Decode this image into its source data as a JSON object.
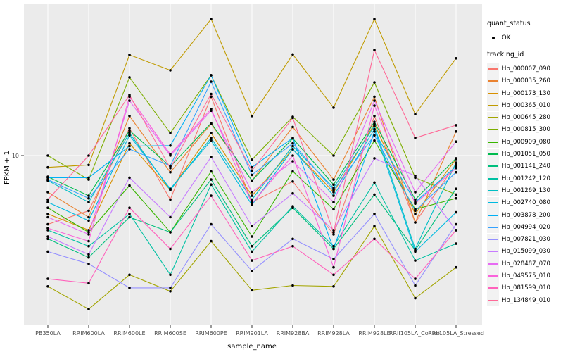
{
  "figure": {
    "xlabel": "sample_name",
    "ylabel": "FPKM + 1"
  },
  "legend": {
    "quant_status_title": "quant_status",
    "quant_status_items": [
      {
        "label": "OK",
        "marker": "point"
      }
    ],
    "tracking_id_title": "tracking_id"
  },
  "colors": {
    "panel_bg": "#EBEBEB",
    "grid": "#FFFFFF",
    "tick_text": "#4D4D4D",
    "point": "#000000",
    "legend_key_bg": "#F2F2F2"
  },
  "chart_data": {
    "type": "line",
    "title": "",
    "xlabel": "sample_name",
    "ylabel": "FPKM + 1",
    "y_scale": "log10",
    "y_ticks": [
      10
    ],
    "grid": true,
    "legend_position": "right",
    "point_marker": "filled-circle",
    "categories": [
      "PB350LA",
      "RRIM600LA",
      "RRIM600LE",
      "RRIM600SE",
      "RRIM600PE",
      "RRIM901LA",
      "RRIM928BA",
      "RRIM928LA",
      "RRIM928LE",
      "RRII105LA_Control",
      "RRII105LA_Stressed"
    ],
    "series": [
      {
        "name": "Hb_000007_090",
        "color": "#F8766D",
        "values": [
          3.6,
          4.4,
          15,
          5.2,
          24,
          5,
          6.8,
          3.1,
          18,
          3.7,
          8.8
        ]
      },
      {
        "name": "Hb_000035_260",
        "color": "#EA8331",
        "values": [
          5.8,
          4,
          18,
          7.8,
          16,
          6.9,
          15.3,
          7,
          24,
          3.7,
          14.3
        ]
      },
      {
        "name": "Hb_000173_130",
        "color": "#D89000",
        "values": [
          4.2,
          3.3,
          12,
          6,
          14,
          5.5,
          11,
          5.8,
          16,
          4.2,
          9.5
        ]
      },
      {
        "name": "Hb_000365_010",
        "color": "#C09B00",
        "values": [
          8.4,
          8.7,
          44.7,
          35.5,
          76,
          18,
          45,
          20.4,
          76,
          18.5,
          42.5
        ]
      },
      {
        "name": "Hb_000645_280",
        "color": "#A3A500",
        "values": [
          1.43,
          1.02,
          1.7,
          1.33,
          2.8,
          1.35,
          1.45,
          1.43,
          3.5,
          1.2,
          1.9
        ]
      },
      {
        "name": "Hb_000815_300",
        "color": "#7CAE00",
        "values": [
          10,
          7,
          32,
          14,
          33,
          9.4,
          17.8,
          10,
          29.7,
          7.2,
          5.6
        ]
      },
      {
        "name": "Hb_000909_080",
        "color": "#39B600",
        "values": [
          4.6,
          3.2,
          6.4,
          3.2,
          7.9,
          3,
          7.9,
          4.5,
          12.5,
          4.5,
          5.3
        ]
      },
      {
        "name": "Hb_001051_050",
        "color": "#00BB4E",
        "values": [
          7.3,
          5.5,
          14.5,
          8.5,
          16.2,
          6.9,
          12.9,
          6.5,
          16.5,
          5.2,
          9.6
        ]
      },
      {
        "name": "Hb_001141_240",
        "color": "#00BF7D",
        "values": [
          2.9,
          2.2,
          4,
          3.2,
          7,
          2.6,
          4.6,
          2.5,
          5.6,
          2.45,
          6.1
        ]
      },
      {
        "name": "Hb_001242_120",
        "color": "#00C1A3",
        "values": [
          3.3,
          2.6,
          4.2,
          1.7,
          6.5,
          2.4,
          4.7,
          2.6,
          6.7,
          2.1,
          2.7
        ]
      },
      {
        "name": "Hb_001269_130",
        "color": "#00BFC4",
        "values": [
          6.9,
          5,
          14,
          6,
          13,
          5.2,
          11.5,
          6.2,
          15.5,
          2.5,
          9
        ]
      },
      {
        "name": "Hb_002740_080",
        "color": "#00BAE0",
        "values": [
          5,
          3.8,
          13.5,
          6.1,
          12.5,
          4.8,
          11,
          5.5,
          14.8,
          2.4,
          4.3
        ]
      },
      {
        "name": "Hb_003878_200",
        "color": "#00B0F6",
        "values": [
          7.2,
          7.2,
          11.5,
          11.6,
          33,
          8.4,
          13,
          2.5,
          14.3,
          5,
          8.5
        ]
      },
      {
        "name": "Hb_004994_020",
        "color": "#35A2FF",
        "values": [
          7,
          5.3,
          11,
          8.6,
          30,
          7.5,
          12,
          6,
          13.5,
          4.4,
          7.8
        ]
      },
      {
        "name": "Hb_007821_030",
        "color": "#9590FF",
        "values": [
          2.4,
          2,
          1.4,
          1.4,
          3.6,
          1.8,
          2.9,
          2.15,
          4.2,
          1.45,
          3.6
        ]
      },
      {
        "name": "Hb_015099_030",
        "color": "#C77CFF",
        "values": [
          3,
          2.3,
          7.2,
          4,
          9.8,
          3.5,
          5.7,
          3.3,
          9.6,
          7.4,
          3.3
        ]
      },
      {
        "name": "Hb_028487_070",
        "color": "#E76BF3",
        "values": [
          4,
          3.1,
          22.6,
          10,
          19.5,
          5.8,
          9.2,
          5,
          22.6,
          5.8,
          12.3
        ]
      },
      {
        "name": "Hb_049575_010",
        "color": "#FA62DB",
        "values": [
          3.4,
          2.8,
          24,
          10.2,
          20,
          4.9,
          10,
          1.9,
          21,
          4.9,
          8.3
        ]
      },
      {
        "name": "Hb_081599_010",
        "color": "#FF62BC",
        "values": [
          1.6,
          1.5,
          4.6,
          2.5,
          5.5,
          2.1,
          2.6,
          1.7,
          2.9,
          1.6,
          3.3
        ]
      },
      {
        "name": "Hb_134849_010",
        "color": "#FF6A98",
        "values": [
          5.2,
          10,
          24.6,
          8.3,
          25,
          8,
          17.5,
          3.2,
          48,
          13,
          15.7
        ]
      }
    ]
  }
}
